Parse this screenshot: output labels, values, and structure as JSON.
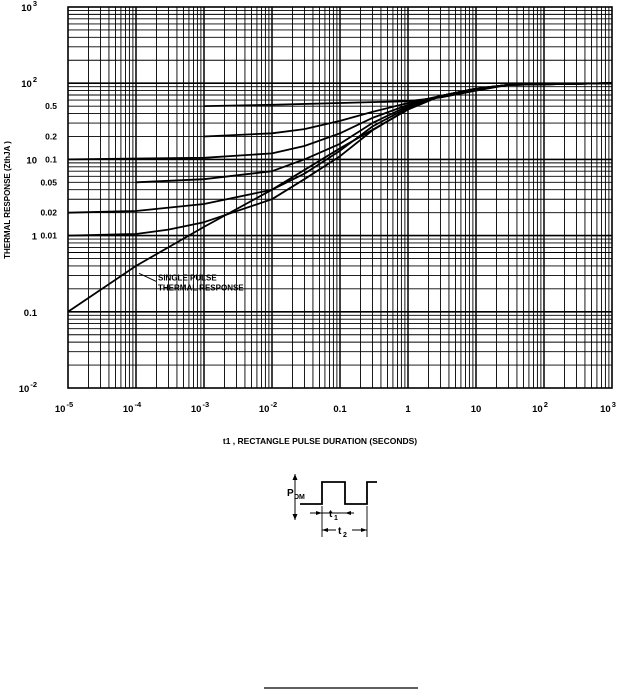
{
  "chart_data": {
    "type": "line",
    "x_scale": "log",
    "y_scale": "log",
    "xlim": [
      1e-05,
      1000
    ],
    "ylim": [
      0.01,
      1000
    ],
    "grid": true,
    "xlabel": "t1 , RECTANGLE PULSE DURATION (SECONDS)",
    "ylabel": "THERMAL RESPONSE (ZthJA )",
    "x_tick_labels": [
      {
        "value": 1e-05,
        "base": "10",
        "exp": "-5"
      },
      {
        "value": 0.0001,
        "base": "10",
        "exp": "-4"
      },
      {
        "value": 0.001,
        "base": "10",
        "exp": "-3"
      },
      {
        "value": 0.01,
        "base": "10",
        "exp": "-2"
      },
      {
        "value": 0.1,
        "base": "0.1",
        "exp": ""
      },
      {
        "value": 1,
        "base": "1",
        "exp": ""
      },
      {
        "value": 10,
        "base": "10",
        "exp": ""
      },
      {
        "value": 100,
        "base": "10",
        "exp": "2"
      },
      {
        "value": 1000,
        "base": "10",
        "exp": "3"
      }
    ],
    "y_tick_labels": [
      {
        "value": 0.01,
        "base": "10",
        "exp": "-2"
      },
      {
        "value": 0.1,
        "base": "0.1",
        "exp": ""
      },
      {
        "value": 1,
        "base": "1",
        "exp": ""
      },
      {
        "value": 10,
        "base": "10",
        "exp": ""
      },
      {
        "value": 100,
        "base": "10",
        "exp": "2"
      },
      {
        "value": 1000,
        "base": "10",
        "exp": "3"
      }
    ],
    "series": [
      {
        "name": "0.5",
        "x": [
          0.001,
          0.01,
          0.1,
          1,
          3,
          10,
          30,
          1000
        ],
        "y": [
          50,
          52,
          55,
          58,
          65,
          80,
          95,
          100
        ]
      },
      {
        "name": "0.2",
        "x": [
          0.001,
          0.01,
          0.03,
          0.1,
          0.3,
          1,
          3,
          10,
          30,
          1000
        ],
        "y": [
          20,
          22,
          25,
          32,
          42,
          55,
          68,
          85,
          95,
          100
        ]
      },
      {
        "name": "0.1",
        "x": [
          1e-05,
          0.001,
          0.01,
          0.03,
          0.1,
          0.3,
          1,
          3,
          10,
          30,
          1000
        ],
        "y": [
          10,
          10.5,
          12,
          15,
          22,
          35,
          52,
          68,
          85,
          95,
          100
        ]
      },
      {
        "name": "0.05",
        "x": [
          0.0001,
          0.001,
          0.01,
          0.03,
          0.1,
          0.3,
          1,
          3,
          10,
          30,
          1000
        ],
        "y": [
          5,
          5.5,
          7,
          10,
          16,
          30,
          50,
          68,
          85,
          95,
          100
        ]
      },
      {
        "name": "0.02",
        "x": [
          1e-05,
          0.0001,
          0.001,
          0.01,
          0.03,
          0.1,
          0.3,
          1,
          3,
          10,
          30,
          1000
        ],
        "y": [
          2,
          2.1,
          2.6,
          4,
          6.5,
          13,
          27,
          48,
          68,
          85,
          95,
          100
        ]
      },
      {
        "name": "0.01",
        "x": [
          1e-05,
          0.0001,
          0.0003,
          0.001,
          0.01,
          0.03,
          0.1,
          0.3,
          1,
          3,
          10,
          30,
          1000
        ],
        "y": [
          1,
          1.05,
          1.2,
          1.5,
          3,
          5.5,
          11,
          24,
          46,
          68,
          85,
          95,
          100
        ]
      },
      {
        "name": "SINGLE PULSE THERMAL RESPONSE",
        "x": [
          1e-05,
          0.0001,
          0.001,
          0.01,
          0.1,
          1,
          3,
          10,
          30,
          1000
        ],
        "y": [
          0.1,
          0.4,
          1.3,
          4,
          14,
          45,
          68,
          85,
          95,
          100
        ]
      }
    ],
    "annotation": {
      "line1": "SINGLE PULSE",
      "line2": "THERMAL RESPONSE",
      "x": 0.0001,
      "y": 0.35
    }
  },
  "inset": {
    "pdm_main": "P",
    "pdm_sub": "DM",
    "t1_main": "t",
    "t1_sub": "1",
    "t2_main": "t",
    "t2_sub": "2"
  }
}
